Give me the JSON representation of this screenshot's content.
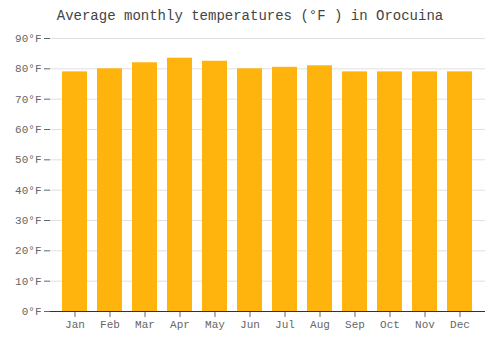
{
  "chart_data": {
    "type": "bar",
    "title": "Average monthly temperatures (°F ) in Orocuina",
    "categories": [
      "Jan",
      "Feb",
      "Mar",
      "Apr",
      "May",
      "Jun",
      "Jul",
      "Aug",
      "Sep",
      "Oct",
      "Nov",
      "Dec"
    ],
    "values": [
      79.0,
      80.0,
      82.0,
      83.5,
      82.5,
      80.0,
      80.5,
      81.0,
      79.0,
      79.0,
      79.0,
      79.0
    ],
    "color": "#FFB30D",
    "ylim": [
      0,
      90
    ],
    "yticks": [
      {
        "value": 0,
        "label": "0°F"
      },
      {
        "value": 10,
        "label": "10°F"
      },
      {
        "value": 20,
        "label": "20°F"
      },
      {
        "value": 30,
        "label": "30°F"
      },
      {
        "value": 40,
        "label": "40°F"
      },
      {
        "value": 50,
        "label": "50°F"
      },
      {
        "value": 60,
        "label": "60°F"
      },
      {
        "value": 70,
        "label": "70°F"
      },
      {
        "value": 80,
        "label": "80°F"
      },
      {
        "value": 90,
        "label": "90°F"
      }
    ],
    "grid": true
  }
}
